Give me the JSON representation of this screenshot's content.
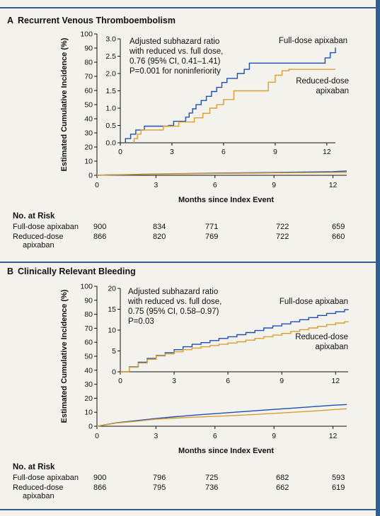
{
  "chart_data": [
    {
      "type": "line",
      "panel_letter": "A",
      "title": "Recurrent Venous Thromboembolism",
      "xlabel": "Months since Index Event",
      "ylabel": "Estimated Cumulative Incidence (%)",
      "xlim": [
        0,
        12.7
      ],
      "ylim": [
        0,
        100
      ],
      "xticks": [
        0,
        3,
        6,
        9,
        12
      ],
      "yticks": [
        0,
        10,
        20,
        30,
        40,
        50,
        60,
        70,
        80,
        90,
        100
      ],
      "series": [
        {
          "name": "Full-dose apixaban",
          "color": "#1f4fb4",
          "x": [
            0,
            0.5,
            1,
            3,
            6,
            9,
            12,
            12.7
          ],
          "y": [
            0,
            0.25,
            0.4,
            0.9,
            1.5,
            2.0,
            2.6,
            3.0
          ]
        },
        {
          "name": "Reduced-dose apixaban",
          "color": "#d9a030",
          "x": [
            0,
            0.5,
            1,
            3,
            6,
            9,
            12,
            12.7
          ],
          "y": [
            0,
            0.2,
            0.3,
            0.8,
            1.3,
            1.7,
            2.0,
            2.0
          ]
        }
      ],
      "inset": {
        "xlim": [
          0,
          12.5
        ],
        "ylim": [
          0,
          3.0
        ],
        "xticks": [
          0,
          3,
          6,
          9,
          12
        ],
        "yticks": [
          0.0,
          0.5,
          1.0,
          1.5,
          2.0,
          2.5,
          3.0
        ],
        "ytick_labels": [
          "0.0",
          "0.5",
          "1.0",
          "1.5",
          "2.0",
          "2.5",
          "3.0"
        ],
        "annotation": [
          "Adjusted subhazard ratio",
          "with reduced vs. full dose,",
          "0.76 (95% CI, 0.41–1.41)",
          "P=0.001 for noninferiority"
        ],
        "labels": {
          "full": [
            "Full-dose apixaban"
          ],
          "reduced": [
            "Reduced-dose",
            "apixaban"
          ]
        },
        "series": [
          {
            "name": "Full-dose apixaban",
            "color": "#1f4fb4",
            "x": [
              0.3,
              0.6,
              0.9,
              1.4,
              2.3,
              2.8,
              3.1,
              3.8,
              4.0,
              4.2,
              4.4,
              4.7,
              5.0,
              5.3,
              5.6,
              5.9,
              6.2,
              6.8,
              7.2,
              7.5,
              9.9,
              11.9,
              12.2,
              12.5
            ],
            "y": [
              0.12,
              0.25,
              0.37,
              0.48,
              0.48,
              0.5,
              0.62,
              0.74,
              0.86,
              0.98,
              1.1,
              1.22,
              1.34,
              1.48,
              1.6,
              1.74,
              1.86,
              2.0,
              2.12,
              2.3,
              2.3,
              2.45,
              2.6,
              2.75
            ]
          },
          {
            "name": "Reduced-dose apixaban",
            "color": "#d9a030",
            "x": [
              0.8,
              1.0,
              1.2,
              2.5,
              3.4,
              4.3,
              4.8,
              5.2,
              5.6,
              6.0,
              6.6,
              8.4,
              8.6,
              9.0,
              9.4,
              9.8,
              12.5
            ],
            "y": [
              0.12,
              0.25,
              0.37,
              0.48,
              0.6,
              0.72,
              0.85,
              1.0,
              1.1,
              1.25,
              1.5,
              1.5,
              1.75,
              1.95,
              2.08,
              2.12,
              2.12
            ]
          }
        ]
      },
      "risk": {
        "title": "No. at Risk",
        "rows": [
          {
            "label": [
              "Full-dose apixaban"
            ],
            "values": [
              "900",
              "834",
              "771",
              "722",
              "659"
            ]
          },
          {
            "label": [
              "Reduced-dose",
              "apixaban"
            ],
            "values": [
              "866",
              "820",
              "769",
              "722",
              "660"
            ]
          }
        ]
      }
    },
    {
      "type": "line",
      "panel_letter": "B",
      "title": "Clinically Relevant Bleeding",
      "xlabel": "Months since Index Event",
      "ylabel": "Estimated Cumulative Incidence (%)",
      "xlim": [
        0,
        12.7
      ],
      "ylim": [
        0,
        100
      ],
      "xticks": [
        0,
        3,
        6,
        9,
        12
      ],
      "yticks": [
        0,
        10,
        20,
        30,
        40,
        50,
        60,
        70,
        80,
        90,
        100
      ],
      "series": [
        {
          "name": "Full-dose apixaban",
          "color": "#1f4fb4",
          "x": [
            0,
            1,
            2,
            3,
            4,
            5,
            6,
            7,
            8,
            9,
            10,
            11,
            12,
            12.7
          ],
          "y": [
            0,
            2.5,
            4,
            5.5,
            6.8,
            8,
            9,
            10,
            11,
            12,
            13,
            14,
            15,
            15.5
          ]
        },
        {
          "name": "Reduced-dose apixaban",
          "color": "#d9a030",
          "x": [
            0,
            1,
            2,
            3,
            4,
            5,
            6,
            7,
            8,
            9,
            10,
            11,
            12,
            12.7
          ],
          "y": [
            0,
            2.3,
            3.5,
            5,
            5.8,
            6.5,
            7,
            7.7,
            8.4,
            9.2,
            10,
            10.8,
            11.8,
            12.5
          ]
        }
      ],
      "inset": {
        "xlim": [
          0,
          12.7
        ],
        "ylim": [
          0,
          20
        ],
        "xticks": [
          0,
          3,
          6,
          9,
          12
        ],
        "yticks": [
          0,
          5,
          10,
          15,
          20
        ],
        "ytick_labels": [
          "0",
          "5",
          "10",
          "15",
          "20"
        ],
        "annotation": [
          "Adjusted subhazard ratio",
          "with reduced vs. full dose,",
          "0.75 (95% CI, 0.58–0.97)",
          "P=0.03"
        ],
        "labels": {
          "full": [
            "Full-dose apixaban"
          ],
          "reduced": [
            "Reduced-dose",
            "apixaban"
          ]
        },
        "series": [
          {
            "name": "Full-dose apixaban",
            "color": "#1f4fb4",
            "x": [
              0,
              0.5,
              1,
              1.5,
              2,
              2.5,
              3,
              3.5,
              4,
              4.5,
              5,
              5.5,
              6,
              6.5,
              7,
              7.5,
              8,
              8.5,
              9,
              9.5,
              10,
              10.5,
              11,
              11.5,
              12,
              12.5,
              12.7
            ],
            "y": [
              0,
              1.2,
              2.3,
              3.2,
              3.9,
              4.6,
              5.3,
              6.0,
              6.6,
              7.0,
              7.5,
              8.0,
              8.4,
              8.9,
              9.4,
              9.9,
              10.5,
              11.0,
              11.5,
              12.0,
              12.5,
              13.0,
              13.5,
              14.0,
              14.4,
              14.9,
              15.0
            ]
          },
          {
            "name": "Reduced-dose apixaban",
            "color": "#d9a030",
            "x": [
              0,
              0.5,
              1,
              1.5,
              2,
              2.5,
              3,
              3.5,
              4,
              4.5,
              5,
              5.5,
              6,
              6.5,
              7,
              7.5,
              8,
              8.5,
              9,
              9.5,
              10,
              10.5,
              11,
              11.5,
              12,
              12.5,
              12.7
            ],
            "y": [
              0,
              1.1,
              2.1,
              3.0,
              3.8,
              4.3,
              4.8,
              5.3,
              5.7,
              6.0,
              6.3,
              6.6,
              6.9,
              7.2,
              7.6,
              8.0,
              8.4,
              8.8,
              9.2,
              9.7,
              10.1,
              10.5,
              10.9,
              11.3,
              11.7,
              12.0,
              12.1
            ]
          }
        ]
      },
      "risk": {
        "title": "No. at Risk",
        "rows": [
          {
            "label": [
              "Full-dose apixaban"
            ],
            "values": [
              "900",
              "796",
              "725",
              "682",
              "593"
            ]
          },
          {
            "label": [
              "Reduced-dose",
              "apixaban"
            ],
            "values": [
              "866",
              "795",
              "736",
              "662",
              "619"
            ]
          }
        ]
      }
    }
  ]
}
